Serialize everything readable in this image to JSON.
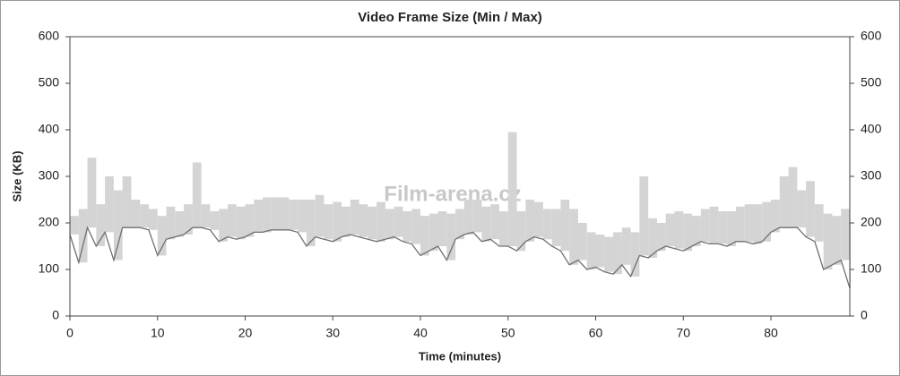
{
  "chart_data": {
    "type": "range",
    "title": "Video Frame Size (Min / Max)",
    "xlabel": "Time (minutes)",
    "ylabel": "Size (KB)",
    "watermark": "Film-arena.cz",
    "x": [
      0,
      1,
      2,
      3,
      4,
      5,
      6,
      7,
      8,
      9,
      10,
      11,
      12,
      13,
      14,
      15,
      16,
      17,
      18,
      19,
      20,
      21,
      22,
      23,
      24,
      25,
      26,
      27,
      28,
      29,
      30,
      31,
      32,
      33,
      34,
      35,
      36,
      37,
      38,
      39,
      40,
      41,
      42,
      43,
      44,
      45,
      46,
      47,
      48,
      49,
      50,
      51,
      52,
      53,
      54,
      55,
      56,
      57,
      58,
      59,
      60,
      61,
      62,
      63,
      64,
      65,
      66,
      67,
      68,
      69,
      70,
      71,
      72,
      73,
      74,
      75,
      76,
      77,
      78,
      79,
      80,
      81,
      82,
      83,
      84,
      85,
      86,
      87,
      88,
      89
    ],
    "series": [
      {
        "color": "#707070",
        "values": [
          175,
          115,
          190,
          150,
          180,
          120,
          190,
          190,
          190,
          185,
          130,
          165,
          170,
          175,
          190,
          190,
          185,
          160,
          170,
          165,
          170,
          180,
          180,
          185,
          185,
          185,
          180,
          150,
          170,
          165,
          160,
          170,
          175,
          170,
          165,
          160,
          165,
          170,
          160,
          155,
          130,
          140,
          150,
          120,
          165,
          175,
          180,
          160,
          165,
          150,
          150,
          140,
          160,
          170,
          165,
          150,
          140,
          110,
          120,
          100,
          105,
          95,
          90,
          110,
          85,
          130,
          125,
          140,
          150,
          145,
          140,
          150,
          160,
          155,
          155,
          150,
          160,
          160,
          155,
          160,
          180,
          190,
          190,
          190,
          170,
          160,
          100,
          110,
          120,
          60
        ]
      },
      {
        "color": "#d4d4d4",
        "values": [
          215,
          230,
          340,
          240,
          300,
          270,
          300,
          250,
          240,
          230,
          215,
          235,
          225,
          240,
          330,
          240,
          225,
          230,
          240,
          235,
          240,
          250,
          255,
          255,
          255,
          250,
          250,
          250,
          260,
          240,
          245,
          235,
          250,
          240,
          235,
          245,
          230,
          235,
          225,
          230,
          215,
          220,
          225,
          220,
          230,
          250,
          250,
          235,
          240,
          225,
          395,
          225,
          250,
          245,
          230,
          230,
          250,
          230,
          200,
          180,
          175,
          170,
          180,
          190,
          180,
          300,
          210,
          200,
          220,
          225,
          220,
          215,
          230,
          235,
          225,
          225,
          235,
          240,
          240,
          245,
          250,
          300,
          320,
          270,
          290,
          240,
          220,
          215,
          230,
          200
        ]
      }
    ],
    "xlim": [
      0,
      89
    ],
    "xticks": [
      0,
      10,
      20,
      30,
      40,
      50,
      60,
      70,
      80
    ],
    "ylim": [
      0,
      600
    ],
    "yticks": [
      0,
      100,
      200,
      300,
      400,
      500,
      600
    ],
    "y2lim": [
      0,
      600
    ],
    "y2ticks": [
      0,
      100,
      200,
      300,
      400,
      500,
      600
    ],
    "grid": false
  }
}
